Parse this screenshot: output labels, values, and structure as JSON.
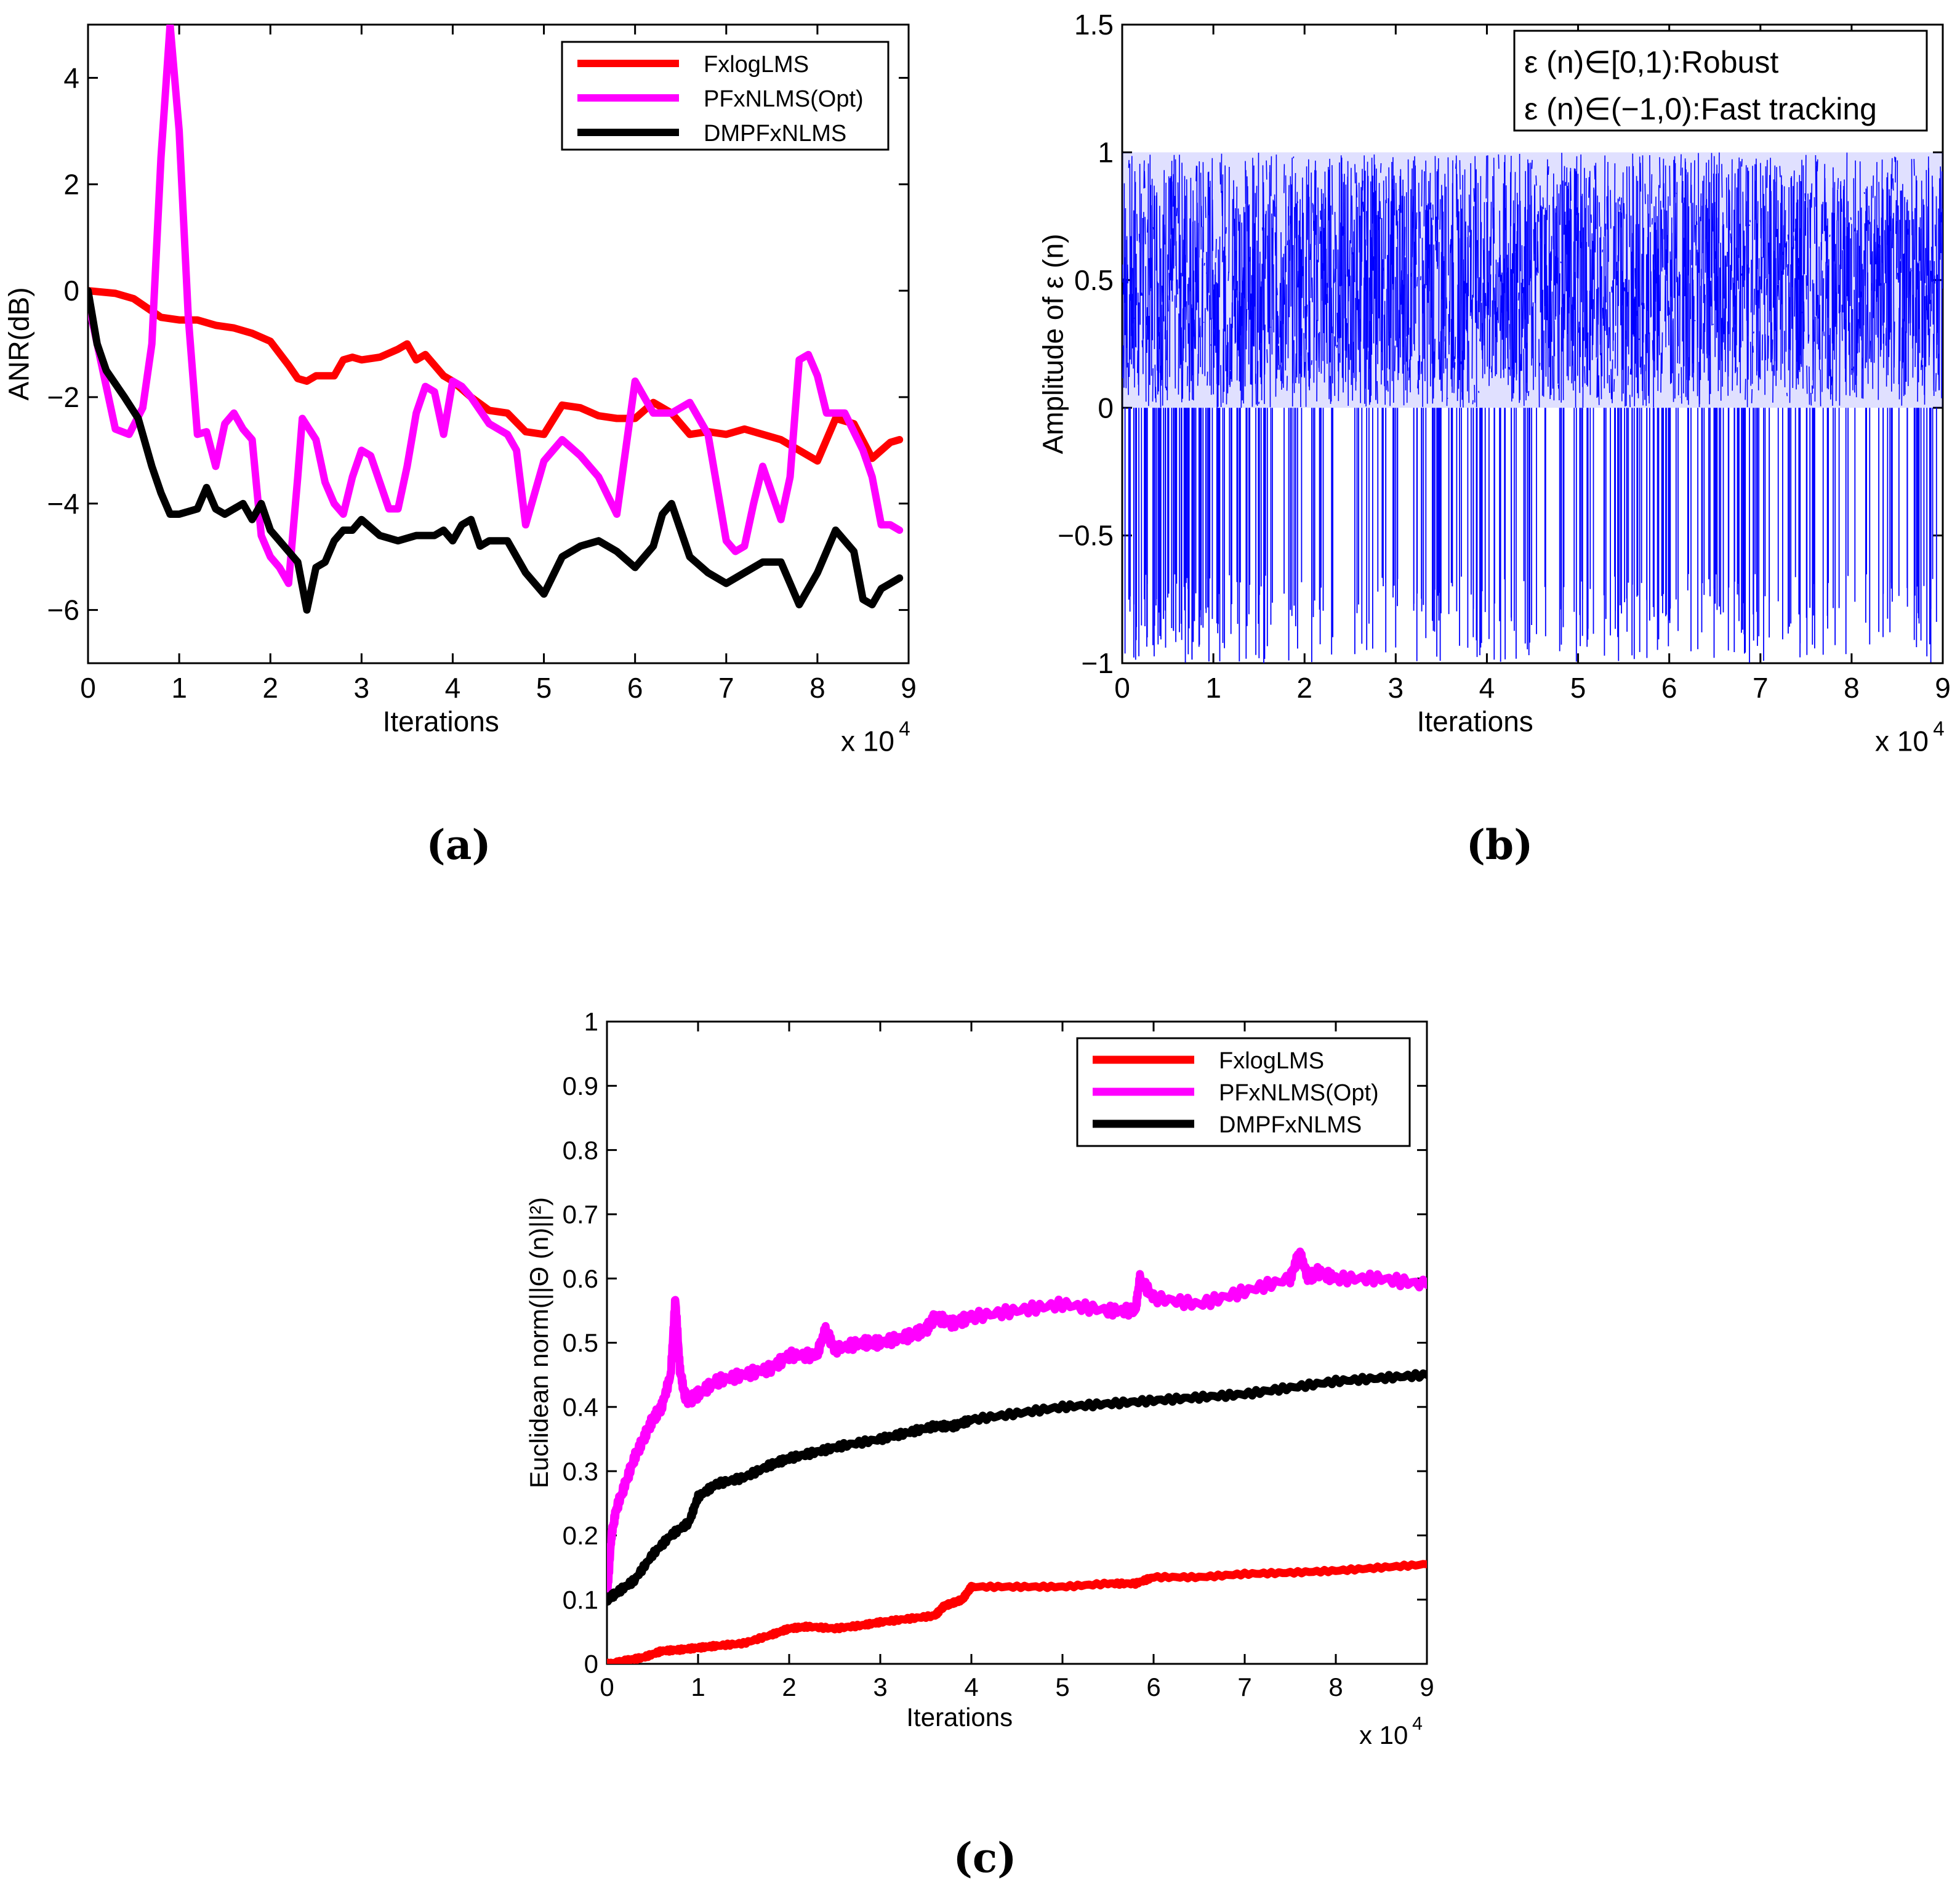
{
  "chart_data": [
    {
      "type": "line",
      "panel_label": "(a)",
      "xlabel": "Iterations",
      "ylabel": "ANR(dB)",
      "x_multiplier": "x 10",
      "x_multiplier_exp": "4",
      "xlim": [
        0,
        9
      ],
      "ylim": [
        -7,
        5
      ],
      "xticks": [
        0,
        1,
        2,
        3,
        4,
        5,
        6,
        7,
        8,
        9
      ],
      "yticks": [
        -6,
        -4,
        -2,
        0,
        2,
        4
      ],
      "ytick_labels": [
        "−6",
        "−4",
        "−2",
        "0",
        "2",
        "4"
      ],
      "legend_position": "top-right",
      "series": [
        {
          "name": "FxlogLMS",
          "color": "#ff0000",
          "x": [
            0,
            0.3,
            0.5,
            0.8,
            1.0,
            1.2,
            1.4,
            1.6,
            1.8,
            2.0,
            2.2,
            2.3,
            2.4,
            2.5,
            2.7,
            2.8,
            2.9,
            3.0,
            3.2,
            3.4,
            3.5,
            3.6,
            3.7,
            3.9,
            4.0,
            4.2,
            4.4,
            4.6,
            4.8,
            5.0,
            5.2,
            5.4,
            5.6,
            5.8,
            6.0,
            6.2,
            6.4,
            6.6,
            6.8,
            7.0,
            7.2,
            7.4,
            7.6,
            7.8,
            8.0,
            8.2,
            8.4,
            8.6,
            8.8,
            8.9
          ],
          "y": [
            0,
            -0.05,
            -0.15,
            -0.5,
            -0.55,
            -0.55,
            -0.65,
            -0.7,
            -0.8,
            -0.95,
            -1.4,
            -1.65,
            -1.7,
            -1.6,
            -1.6,
            -1.3,
            -1.25,
            -1.3,
            -1.25,
            -1.1,
            -1.0,
            -1.3,
            -1.2,
            -1.6,
            -1.7,
            -2.0,
            -2.25,
            -2.3,
            -2.65,
            -2.7,
            -2.15,
            -2.2,
            -2.35,
            -2.4,
            -2.4,
            -2.1,
            -2.3,
            -2.7,
            -2.65,
            -2.7,
            -2.6,
            -2.7,
            -2.8,
            -3.0,
            -3.2,
            -2.4,
            -2.5,
            -3.15,
            -2.85,
            -2.8
          ]
        },
        {
          "name": "PFxNLMS(Opt)",
          "color": "#ff00ff",
          "x": [
            0,
            0.1,
            0.3,
            0.45,
            0.6,
            0.7,
            0.8,
            0.9,
            1.0,
            1.1,
            1.2,
            1.3,
            1.4,
            1.5,
            1.6,
            1.7,
            1.8,
            1.9,
            2.0,
            2.1,
            2.2,
            2.3,
            2.35,
            2.5,
            2.6,
            2.7,
            2.8,
            2.9,
            3.0,
            3.1,
            3.2,
            3.3,
            3.4,
            3.5,
            3.6,
            3.7,
            3.8,
            3.9,
            4.0,
            4.1,
            4.2,
            4.4,
            4.6,
            4.7,
            4.8,
            4.9,
            5.0,
            5.2,
            5.4,
            5.6,
            5.8,
            6.0,
            6.2,
            6.4,
            6.6,
            6.8,
            7.0,
            7.1,
            7.2,
            7.3,
            7.4,
            7.5,
            7.6,
            7.7,
            7.8,
            7.9,
            8.0,
            8.1,
            8.3,
            8.5,
            8.6,
            8.7,
            8.8,
            8.9
          ],
          "y": [
            -0.2,
            -1.0,
            -2.6,
            -2.7,
            -2.2,
            -1.0,
            2.5,
            5.0,
            3.0,
            -0.5,
            -2.7,
            -2.65,
            -3.3,
            -2.5,
            -2.3,
            -2.6,
            -2.8,
            -4.6,
            -5.0,
            -5.2,
            -5.5,
            -3.5,
            -2.4,
            -2.8,
            -3.6,
            -4.0,
            -4.2,
            -3.5,
            -3.0,
            -3.1,
            -3.6,
            -4.1,
            -4.1,
            -3.3,
            -2.3,
            -1.8,
            -1.9,
            -2.7,
            -1.7,
            -1.8,
            -2.0,
            -2.5,
            -2.7,
            -3.0,
            -4.4,
            -3.8,
            -3.2,
            -2.8,
            -3.1,
            -3.5,
            -4.2,
            -1.7,
            -2.3,
            -2.3,
            -2.1,
            -2.7,
            -4.7,
            -4.9,
            -4.8,
            -4.0,
            -3.3,
            -3.8,
            -4.3,
            -3.5,
            -1.3,
            -1.2,
            -1.6,
            -2.3,
            -2.3,
            -3.0,
            -3.5,
            -4.4,
            -4.4,
            -4.5
          ]
        },
        {
          "name": "DMPFxNLMS",
          "color": "#000000",
          "x": [
            0,
            0.1,
            0.2,
            0.4,
            0.55,
            0.7,
            0.8,
            0.9,
            1.0,
            1.2,
            1.3,
            1.4,
            1.5,
            1.7,
            1.8,
            1.9,
            2.0,
            2.1,
            2.2,
            2.3,
            2.4,
            2.5,
            2.6,
            2.7,
            2.8,
            2.9,
            3.0,
            3.2,
            3.4,
            3.6,
            3.8,
            3.9,
            4.0,
            4.1,
            4.2,
            4.3,
            4.4,
            4.6,
            4.8,
            5.0,
            5.2,
            5.4,
            5.6,
            5.8,
            6.0,
            6.2,
            6.3,
            6.4,
            6.6,
            6.8,
            7.0,
            7.2,
            7.4,
            7.6,
            7.8,
            8.0,
            8.2,
            8.4,
            8.5,
            8.6,
            8.7,
            8.8,
            8.9
          ],
          "y": [
            0,
            -1.0,
            -1.5,
            -2.0,
            -2.4,
            -3.3,
            -3.8,
            -4.2,
            -4.2,
            -4.1,
            -3.7,
            -4.1,
            -4.2,
            -4.0,
            -4.3,
            -4.0,
            -4.5,
            -4.7,
            -4.9,
            -5.1,
            -6.0,
            -5.2,
            -5.1,
            -4.7,
            -4.5,
            -4.5,
            -4.3,
            -4.6,
            -4.7,
            -4.6,
            -4.6,
            -4.5,
            -4.7,
            -4.4,
            -4.3,
            -4.8,
            -4.7,
            -4.7,
            -5.3,
            -5.7,
            -5.0,
            -4.8,
            -4.7,
            -4.9,
            -5.2,
            -4.8,
            -4.2,
            -4.0,
            -5.0,
            -5.3,
            -5.5,
            -5.3,
            -5.1,
            -5.1,
            -5.9,
            -5.3,
            -4.5,
            -4.9,
            -5.8,
            -5.9,
            -5.6,
            -5.5,
            -5.4
          ]
        }
      ]
    },
    {
      "type": "line",
      "panel_label": "(b)",
      "xlabel": "Iterations",
      "ylabel": "Amplitude of ε (n)",
      "x_multiplier": "x 10",
      "x_multiplier_exp": "4",
      "xlim": [
        0,
        9
      ],
      "ylim": [
        -1,
        1.5
      ],
      "xticks": [
        0,
        1,
        2,
        3,
        4,
        5,
        6,
        7,
        8,
        9
      ],
      "yticks": [
        -1,
        -0.5,
        0,
        0.5,
        1,
        1.5
      ],
      "ytick_labels": [
        "−1",
        "−0.5",
        "0",
        "0.5",
        "1",
        "1.5"
      ],
      "series": [
        {
          "name": "ε (n)",
          "color": "#0000ff",
          "description_values": {
            "positive_band": [
              0,
              1
            ],
            "negative_band": [
              -1,
              0
            ]
          },
          "x_dense_regions": [
            [
              0.1,
              1.6
            ],
            [
              3.4,
              4.1
            ],
            [
              5.4,
              6.0
            ],
            [
              6.5,
              7.0
            ],
            [
              7.4,
              7.6
            ],
            [
              8.6,
              8.9
            ]
          ]
        }
      ],
      "annotation_lines": [
        "ε (n)∈[0,1):Robust",
        "ε (n)∈(−1,0):Fast tracking"
      ]
    },
    {
      "type": "line",
      "panel_label": "(c)",
      "xlabel": "Iterations",
      "ylabel": "Euclidean norm(||Θ (n)||²)",
      "x_multiplier": "x 10",
      "x_multiplier_exp": "4",
      "xlim": [
        0,
        9
      ],
      "ylim": [
        0,
        1
      ],
      "xticks": [
        0,
        1,
        2,
        3,
        4,
        5,
        6,
        7,
        8,
        9
      ],
      "yticks": [
        0,
        0.1,
        0.2,
        0.3,
        0.4,
        0.5,
        0.6,
        0.7,
        0.8,
        0.9,
        1
      ],
      "ytick_labels": [
        "0",
        "0.1",
        "0.2",
        "0.3",
        "0.4",
        "0.5",
        "0.6",
        "0.7",
        "0.8",
        "0.9",
        "1"
      ],
      "legend_position": "top-right",
      "series": [
        {
          "name": "FxlogLMS",
          "color": "#ff0000",
          "x": [
            0,
            0.05,
            0.2,
            0.4,
            0.6,
            0.8,
            1.0,
            1.2,
            1.5,
            1.8,
            2.0,
            2.2,
            2.5,
            2.8,
            3.0,
            3.3,
            3.6,
            3.7,
            3.8,
            3.9,
            4.0,
            4.5,
            5.0,
            5.5,
            5.8,
            6.0,
            6.5,
            7.0,
            7.5,
            8.0,
            8.5,
            9.0
          ],
          "y": [
            0,
            0.0,
            0.005,
            0.01,
            0.02,
            0.022,
            0.025,
            0.028,
            0.032,
            0.045,
            0.055,
            0.058,
            0.055,
            0.06,
            0.065,
            0.07,
            0.075,
            0.09,
            0.095,
            0.1,
            0.12,
            0.12,
            0.12,
            0.125,
            0.125,
            0.135,
            0.135,
            0.14,
            0.142,
            0.145,
            0.15,
            0.155
          ]
        },
        {
          "name": "PFxNLMS(Opt)",
          "color": "#ff00ff",
          "x": [
            0,
            0.05,
            0.1,
            0.2,
            0.3,
            0.4,
            0.5,
            0.6,
            0.7,
            0.75,
            0.8,
            0.85,
            0.9,
            1.0,
            1.2,
            1.5,
            1.8,
            2.0,
            2.3,
            2.4,
            2.5,
            2.8,
            3.0,
            3.3,
            3.5,
            3.6,
            3.8,
            4.0,
            4.5,
            5.0,
            5.5,
            5.8,
            5.85,
            6.0,
            6.5,
            7.0,
            7.5,
            7.6,
            7.7,
            7.8,
            8.0,
            8.5,
            9.0
          ],
          "y": [
            0.1,
            0.2,
            0.24,
            0.28,
            0.32,
            0.35,
            0.38,
            0.4,
            0.45,
            0.57,
            0.46,
            0.42,
            0.41,
            0.42,
            0.44,
            0.45,
            0.46,
            0.48,
            0.48,
            0.52,
            0.49,
            0.5,
            0.5,
            0.51,
            0.52,
            0.54,
            0.53,
            0.54,
            0.55,
            0.56,
            0.55,
            0.55,
            0.6,
            0.57,
            0.56,
            0.58,
            0.6,
            0.64,
            0.6,
            0.61,
            0.6,
            0.6,
            0.59
          ]
        },
        {
          "name": "DMPFxNLMS",
          "color": "#000000",
          "x": [
            0,
            0.1,
            0.3,
            0.5,
            0.7,
            0.9,
            1.0,
            1.2,
            1.5,
            1.8,
            2.0,
            2.3,
            2.6,
            3.0,
            3.3,
            3.6,
            3.8,
            4.0,
            4.5,
            5.0,
            5.5,
            6.0,
            6.5,
            7.0,
            7.5,
            8.0,
            8.5,
            9.0
          ],
          "y": [
            0.1,
            0.11,
            0.13,
            0.17,
            0.2,
            0.22,
            0.26,
            0.28,
            0.29,
            0.31,
            0.32,
            0.33,
            0.34,
            0.35,
            0.36,
            0.37,
            0.37,
            0.38,
            0.39,
            0.4,
            0.405,
            0.41,
            0.415,
            0.42,
            0.43,
            0.44,
            0.445,
            0.45
          ]
        }
      ]
    }
  ]
}
